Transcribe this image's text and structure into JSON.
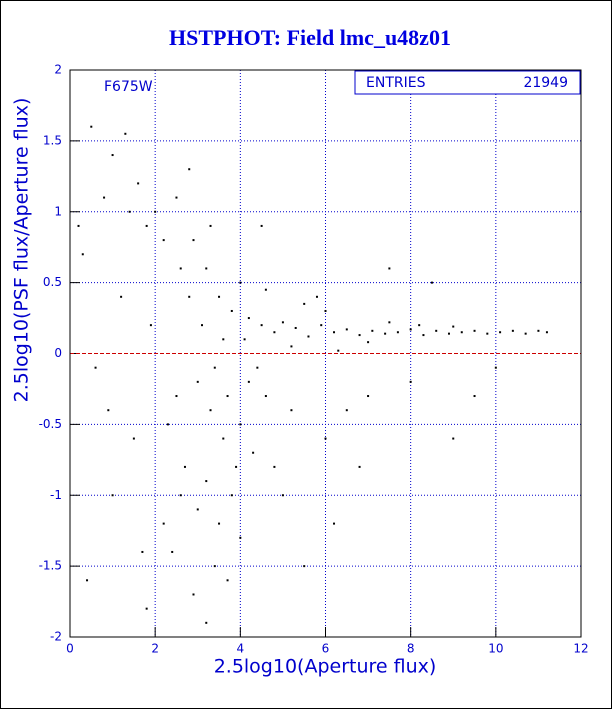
{
  "chart_data": {
    "type": "scatter",
    "title": "HSTPHOT: Field lmc_u48z01",
    "xlabel": "2.5log10(Aperture flux)",
    "ylabel": "2.5log10(PSF flux/Aperture flux)",
    "annotation": "F675W",
    "stats": {
      "label": "ENTRIES",
      "value": 21949
    },
    "xlim": [
      0,
      12
    ],
    "ylim": [
      -2,
      2
    ],
    "xticks": [
      0,
      2,
      4,
      6,
      8,
      10,
      12
    ],
    "yticks": [
      -2,
      -1.5,
      -1,
      -0.5,
      0,
      0.5,
      1,
      1.5,
      2
    ],
    "grid": true,
    "grid_color": "#0000cc",
    "color": "#000000",
    "reference_line": {
      "y": 0,
      "color": "#cc0000"
    },
    "x": [
      4.2,
      4.5,
      4.8,
      5.0,
      5.3,
      5.6,
      5.9,
      6.2,
      6.5,
      6.8,
      7.1,
      7.4,
      7.7,
      8.0,
      8.3,
      8.6,
      8.9,
      9.2,
      9.5,
      9.8,
      10.1,
      10.4,
      10.7,
      11.0,
      11.2,
      7.5,
      8.2,
      9.0,
      6.0,
      5.5,
      5.2,
      6.3,
      7.0,
      5.8,
      4.6,
      4.0,
      3.2,
      3.5,
      3.8,
      4.1,
      3.4,
      3.7,
      4.0,
      3.6,
      4.2,
      3.9,
      3.3,
      4.4,
      3.1,
      3.6,
      4.6,
      3.8,
      3.5,
      4.0,
      3.2,
      4.3,
      3.0,
      2.8,
      2.6,
      2.9,
      3.3,
      2.5,
      2.7,
      3.0,
      3.4,
      3.7,
      2.9,
      3.2,
      2.4,
      2.2,
      2.6,
      0.5,
      1.0,
      1.3,
      1.6,
      1.8,
      0.8,
      0.3,
      1.2,
      0.6,
      1.5,
      1.0,
      0.4,
      1.8,
      2.0,
      2.2,
      1.9,
      2.3,
      1.7,
      0.9,
      0.2,
      1.4,
      2.5,
      2.8,
      5.0,
      6.0,
      6.5,
      7.0,
      8.0,
      9.0,
      8.5,
      9.5,
      5.5,
      6.2,
      7.5,
      4.8,
      5.2,
      6.8,
      4.5,
      10.0
    ],
    "y": [
      0.25,
      0.2,
      0.15,
      0.22,
      0.18,
      0.12,
      0.2,
      0.15,
      0.17,
      0.13,
      0.16,
      0.14,
      0.15,
      0.17,
      0.13,
      0.16,
      0.14,
      0.15,
      0.16,
      0.14,
      0.15,
      0.16,
      0.14,
      0.16,
      0.15,
      0.22,
      0.2,
      0.19,
      0.3,
      0.35,
      0.05,
      0.02,
      0.08,
      0.4,
      0.45,
      0.5,
      0.6,
      0.4,
      0.3,
      0.1,
      -0.1,
      -0.3,
      -0.5,
      -0.6,
      -0.2,
      -0.8,
      -0.4,
      -0.1,
      0.2,
      0.1,
      -0.3,
      -1.0,
      -1.2,
      -1.3,
      -0.9,
      -0.7,
      -0.2,
      0.4,
      0.6,
      0.8,
      0.9,
      -0.3,
      -0.8,
      -1.1,
      -1.5,
      -1.6,
      -1.7,
      -1.9,
      -1.4,
      -1.2,
      -1.0,
      1.6,
      1.4,
      1.55,
      1.2,
      0.9,
      1.1,
      0.7,
      0.4,
      -0.1,
      -0.6,
      -1.0,
      -1.6,
      -1.8,
      1.0,
      0.8,
      0.2,
      -0.5,
      -1.4,
      -0.4,
      0.9,
      1.0,
      1.1,
      1.3,
      -1.0,
      -0.6,
      -0.4,
      -0.3,
      -0.2,
      -0.6,
      0.5,
      -0.3,
      -1.5,
      -1.2,
      0.6,
      -0.8,
      -0.4,
      -0.8,
      0.9,
      -0.1
    ]
  }
}
